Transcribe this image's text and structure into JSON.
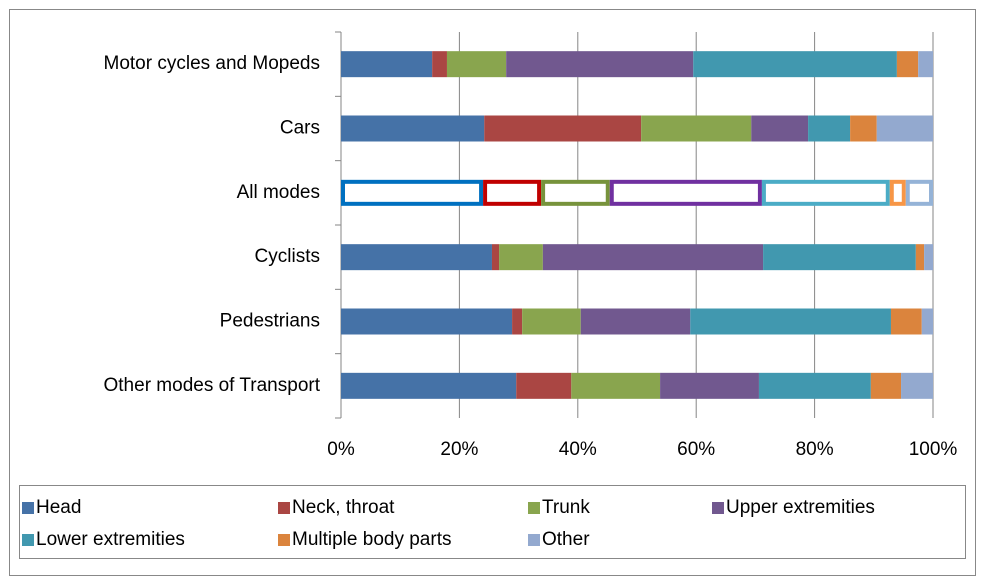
{
  "chart_data": {
    "type": "stacked_bar_horizontal",
    "categories": [
      "Motor cycles and Mopeds",
      "Cars",
      "All modes",
      "Cyclists",
      "Pedestrians",
      "Other modes of Transport"
    ],
    "outlined": [
      false,
      false,
      true,
      false,
      false,
      false
    ],
    "series": [
      {
        "name": "Head",
        "color": "#4572a7",
        "outline_color": "#0070c0",
        "values": [
          15.4,
          24.2,
          24.0,
          25.5,
          28.9,
          29.6
        ]
      },
      {
        "name": "Neck, throat",
        "color": "#aa4643",
        "outline_color": "#c00000",
        "values": [
          2.5,
          26.5,
          9.8,
          1.2,
          1.7,
          9.3
        ]
      },
      {
        "name": "Trunk",
        "color": "#89a54e",
        "outline_color": "#77933c",
        "values": [
          10.0,
          18.6,
          11.6,
          7.4,
          9.9,
          15.0
        ]
      },
      {
        "name": "Upper extremities",
        "color": "#71588f",
        "outline_color": "#7030a0",
        "values": [
          31.6,
          9.6,
          25.7,
          37.2,
          18.5,
          16.7
        ]
      },
      {
        "name": "Lower extremities",
        "color": "#4198af",
        "outline_color": "#4bacc6",
        "values": [
          34.4,
          7.1,
          21.6,
          25.8,
          33.9,
          18.9
        ]
      },
      {
        "name": "Multiple body parts",
        "color": "#db843d",
        "outline_color": "#f79646",
        "values": [
          3.6,
          4.5,
          2.7,
          1.4,
          5.2,
          5.1
        ]
      },
      {
        "name": "Other",
        "color": "#93a9cf",
        "outline_color": "#95b3d7",
        "values": [
          2.5,
          9.5,
          4.6,
          1.5,
          1.9,
          5.4
        ]
      }
    ],
    "xlim": [
      0,
      100
    ],
    "xticks": [
      {
        "value": 0,
        "label": "0%"
      },
      {
        "value": 20,
        "label": "20%"
      },
      {
        "value": 40,
        "label": "40%"
      },
      {
        "value": 60,
        "label": "60%"
      },
      {
        "value": 80,
        "label": "80%"
      },
      {
        "value": 100,
        "label": "100%"
      }
    ],
    "grid": true,
    "legend": "bottom"
  }
}
